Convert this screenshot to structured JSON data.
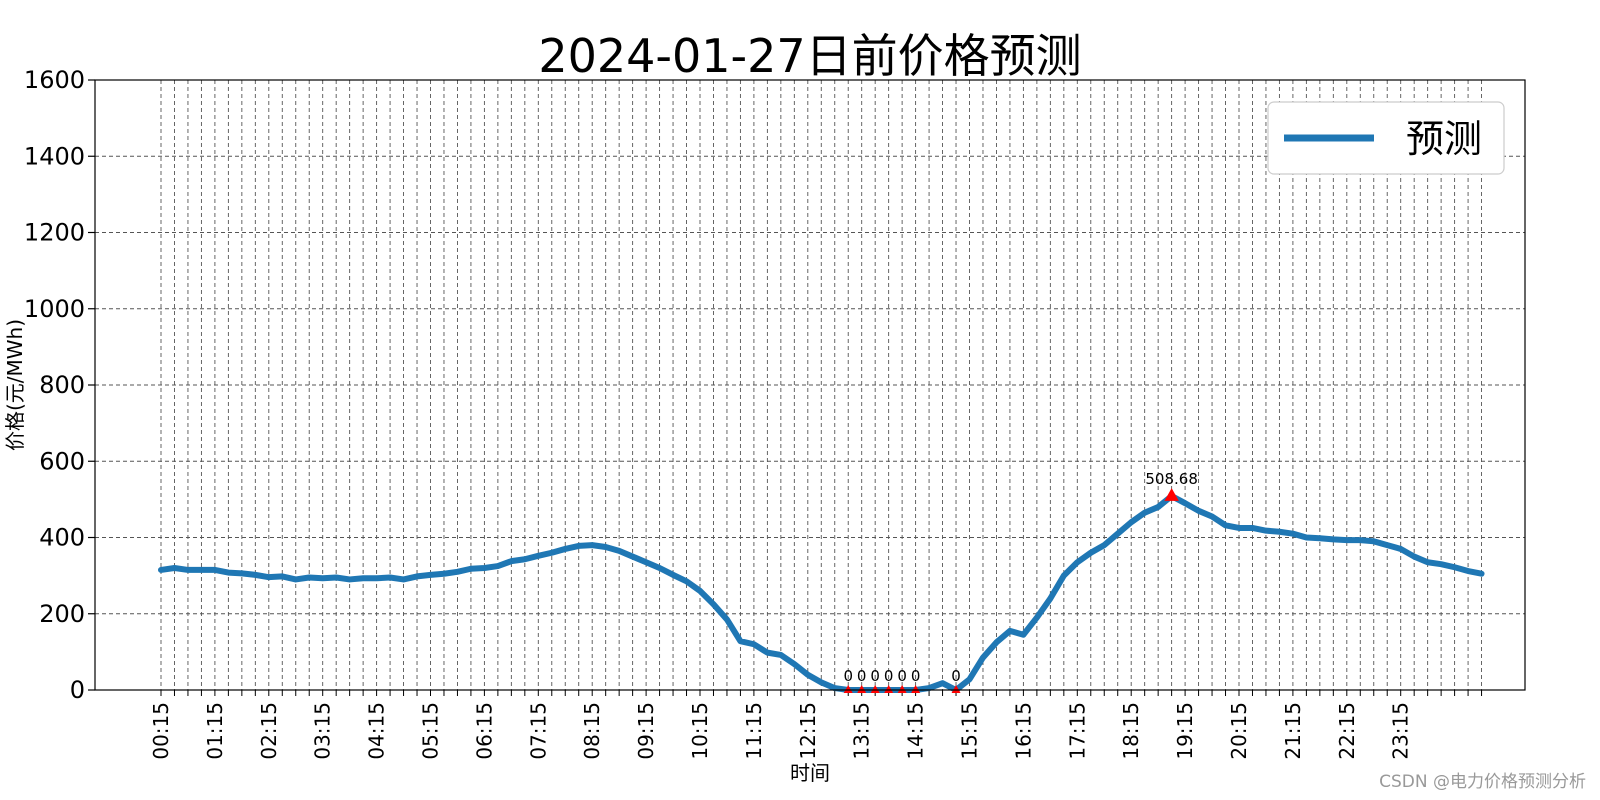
{
  "chart_data": {
    "type": "line",
    "title": "2024-01-27日前价格预测",
    "xlabel": "时间",
    "ylabel": "价格(元/MWh)",
    "ylim": [
      0,
      1600
    ],
    "yticks": [
      0,
      200,
      400,
      600,
      800,
      1000,
      1200,
      1400,
      1600
    ],
    "grid": true,
    "legend_position": "top-right",
    "xtick_labels": [
      "00:15",
      "01:15",
      "02:15",
      "03:15",
      "04:15",
      "05:15",
      "06:15",
      "07:15",
      "08:15",
      "09:15",
      "10:15",
      "11:15",
      "12:15",
      "13:15",
      "14:15",
      "15:15",
      "16:15",
      "17:15",
      "18:15",
      "19:15",
      "20:15",
      "21:15",
      "22:15",
      "23:15"
    ],
    "series": [
      {
        "name": "预测",
        "color": "#1f77b4",
        "values": [
          315,
          320,
          315,
          315,
          315,
          308,
          306,
          302,
          296,
          298,
          290,
          295,
          293,
          295,
          290,
          293,
          293,
          295,
          290,
          298,
          302,
          305,
          310,
          318,
          320,
          325,
          338,
          343,
          352,
          360,
          370,
          378,
          380,
          375,
          365,
          350,
          335,
          320,
          302,
          285,
          260,
          225,
          185,
          128,
          120,
          98,
          92,
          68,
          40,
          20,
          5,
          0,
          0,
          0,
          0,
          0,
          0,
          5,
          18,
          0,
          28,
          85,
          125,
          155,
          145,
          190,
          240,
          300,
          335,
          360,
          380,
          410,
          440,
          465,
          480,
          508.68,
          490,
          470,
          455,
          432,
          425,
          425,
          418,
          415,
          410,
          400,
          398,
          395,
          393,
          393,
          390,
          380,
          370,
          350,
          335,
          330,
          322,
          312,
          305
        ]
      }
    ],
    "annotations": {
      "max": {
        "index": 75,
        "value": 508.68,
        "label": "508.68",
        "color": "#ff0000"
      },
      "zeros": [
        {
          "index": 51,
          "label": "0"
        },
        {
          "index": 52,
          "label": "0"
        },
        {
          "index": 53,
          "label": "0"
        },
        {
          "index": 54,
          "label": "0"
        },
        {
          "index": 55,
          "label": "0"
        },
        {
          "index": 56,
          "label": "0"
        },
        {
          "index": 59,
          "label": "0"
        }
      ]
    }
  },
  "watermark": "CSDN @电力价格预测分析"
}
